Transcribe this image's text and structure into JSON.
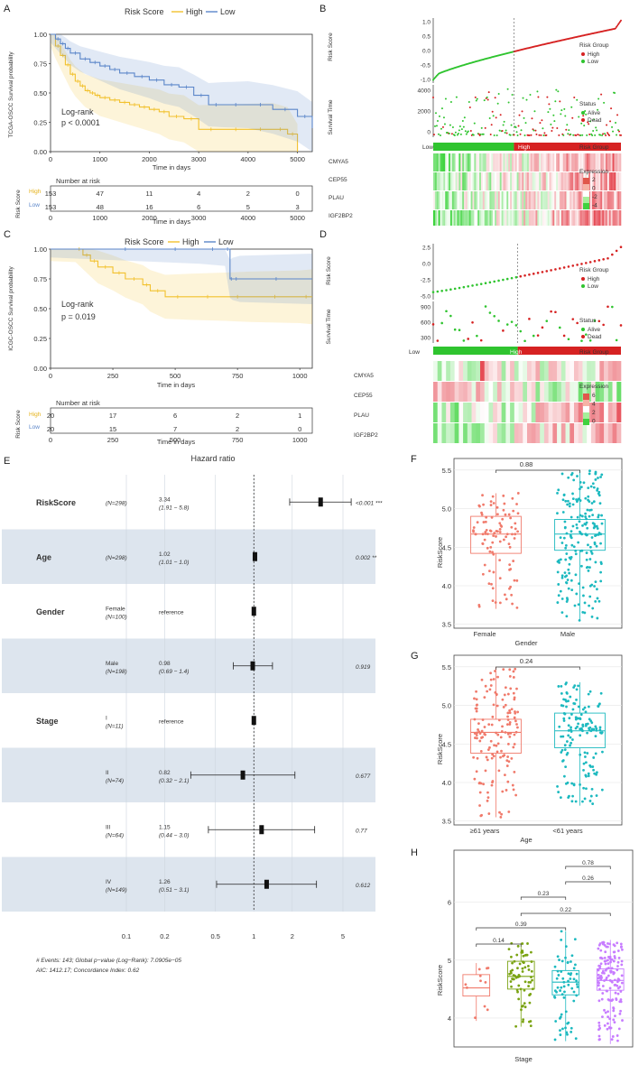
{
  "panel_labels": {
    "A": "A",
    "B": "B",
    "C": "C",
    "D": "D",
    "E": "E",
    "F": "F",
    "G": "G",
    "H": "H"
  },
  "colors": {
    "high": "#f2c12e",
    "low": "#5b86c9",
    "dead": "#d62222",
    "alive": "#2fc42f",
    "boxF": "#f07a6b",
    "boxM": "#1cb9bf",
    "stageI": "#f07a6b",
    "stageII": "#7aa312",
    "stageIII": "#1cb9bf",
    "stageIV": "#c77cff",
    "band": "#dde5ee"
  },
  "km_common": {
    "legend_title": "Risk Score",
    "legend_high": "High",
    "legend_low": "Low",
    "xlabel": "Time in days",
    "logrank": "Log-rank",
    "risk_title": "Number at risk",
    "risk_ylabel": "Risk Score",
    "row_high": "High",
    "row_low": "Low"
  },
  "chart_data": [
    {
      "id": "A",
      "type": "line",
      "ylabel": "TCGA-OSCC Survival probability",
      "xlabel": "Time in days",
      "pvalue": "p < 0.0001",
      "xticks": [
        "0",
        "1000",
        "2000",
        "3000",
        "4000",
        "5000"
      ],
      "yticks": [
        "0.00",
        "0.25",
        "0.50",
        "0.75",
        "1.00"
      ],
      "xlim": [
        0,
        5300
      ],
      "ylim": [
        0,
        1
      ],
      "series": [
        {
          "name": "High",
          "x": [
            0,
            100,
            200,
            300,
            400,
            500,
            600,
            700,
            800,
            900,
            1000,
            1200,
            1400,
            1600,
            1800,
            2000,
            2200,
            2400,
            2700,
            3000,
            3500,
            4000,
            4500,
            4800,
            5000
          ],
          "y": [
            1,
            0.9,
            0.82,
            0.74,
            0.66,
            0.6,
            0.56,
            0.52,
            0.5,
            0.48,
            0.46,
            0.44,
            0.42,
            0.4,
            0.38,
            0.36,
            0.34,
            0.3,
            0.28,
            0.19,
            0.19,
            0.19,
            0.19,
            0.15,
            0.0
          ]
        },
        {
          "name": "Low",
          "x": [
            0,
            100,
            200,
            300,
            400,
            600,
            800,
            1000,
            1200,
            1400,
            1700,
            2000,
            2300,
            2600,
            2900,
            3200,
            3500,
            4000,
            4500,
            5000,
            5300
          ],
          "y": [
            1,
            0.96,
            0.92,
            0.88,
            0.84,
            0.79,
            0.76,
            0.73,
            0.7,
            0.67,
            0.64,
            0.61,
            0.57,
            0.55,
            0.48,
            0.4,
            0.4,
            0.4,
            0.36,
            0.3,
            0.2
          ]
        }
      ],
      "risk_ticks": [
        "0",
        "1000",
        "2000",
        "3000",
        "4000",
        "5000"
      ],
      "risk_high": [
        "153",
        "47",
        "11",
        "4",
        "2",
        "0"
      ],
      "risk_low": [
        "153",
        "48",
        "16",
        "6",
        "5",
        "3"
      ]
    },
    {
      "id": "C",
      "type": "line",
      "ylabel": "ICGC-OSCC Survival probability",
      "xlabel": "Time in days",
      "pvalue": "p = 0.019",
      "xticks": [
        "0",
        "250",
        "500",
        "750",
        "1000"
      ],
      "yticks": [
        "0.00",
        "0.25",
        "0.50",
        "0.75",
        "1.00"
      ],
      "xlim": [
        0,
        1050
      ],
      "ylim": [
        0,
        1
      ],
      "series": [
        {
          "name": "High",
          "x": [
            0,
            100,
            130,
            160,
            190,
            250,
            300,
            370,
            400,
            460,
            560,
            700,
            800,
            1000,
            1050
          ],
          "y": [
            1,
            1,
            0.95,
            0.9,
            0.85,
            0.8,
            0.75,
            0.7,
            0.65,
            0.6,
            0.6,
            0.6,
            0.6,
            0.6,
            0.6
          ]
        },
        {
          "name": "Low",
          "x": [
            0,
            200,
            400,
            600,
            700,
            720,
            730,
            760,
            1050
          ],
          "y": [
            1,
            1,
            1,
            1,
            1,
            0.75,
            0.75,
            0.75,
            0.75
          ]
        }
      ],
      "risk_ticks": [
        "0",
        "250",
        "500",
        "750",
        "1000"
      ],
      "risk_high": [
        "20",
        "17",
        "6",
        "2",
        "1"
      ],
      "risk_low": [
        "20",
        "15",
        "7",
        "2",
        "0"
      ]
    }
  ],
  "panelB": {
    "risk_ylabel": "Risk Score",
    "risk_yticks": [
      "1.0",
      "0.5",
      "0.0",
      "-0.5",
      "-1.0"
    ],
    "time_ylabel": "Survival Time",
    "time_yticks": [
      "4000",
      "2000",
      "0"
    ],
    "risk_group_title": "Risk Group",
    "rg_high": "High",
    "rg_low": "Low",
    "status_title": "Status",
    "st_alive": "Alive",
    "st_dead": "Dead",
    "bar_low": "Low",
    "bar_high": "High",
    "bar_label": "Risk Group",
    "genes": [
      "CMYA5",
      "CEP55",
      "PLAU",
      "IGF2BP2"
    ],
    "expr_title": "Expression",
    "expr_ticks": [
      "2",
      "0",
      "-2",
      "-4"
    ]
  },
  "panelD": {
    "risk_ylabel": "Risk Score",
    "risk_yticks": [
      "2.5",
      "0.0",
      "-2.5",
      "-5.0"
    ],
    "time_ylabel": "Survival Time",
    "time_yticks": [
      "900",
      "600",
      "300"
    ],
    "risk_group_title": "Risk Group",
    "rg_high": "High",
    "rg_low": "Low",
    "status_title": "Status",
    "st_alive": "Alive",
    "st_dead": "Dead",
    "bar_low": "Low",
    "bar_high": "High",
    "bar_label": "Risk Group",
    "genes": [
      "CMYA5",
      "CEP55",
      "PLAU",
      "IGF2BP2"
    ],
    "expr_title": "Expression",
    "expr_ticks": [
      "6",
      "4",
      "2",
      "0"
    ]
  },
  "forest": {
    "title": "Hazard ratio",
    "rows": [
      {
        "name": "RiskScore",
        "level": "",
        "n": "(N=298)",
        "hr": "3.34",
        "ci": "(1.91 − 5.8)",
        "p": "<0.001 ***",
        "est": 3.34,
        "lo": 1.91,
        "hi": 5.8,
        "shaded": false
      },
      {
        "name": "Age",
        "level": "",
        "n": "(N=298)",
        "hr": "1.02",
        "ci": "(1.01 − 1.0)",
        "p": "0.002 **",
        "est": 1.02,
        "lo": 1.01,
        "hi": 1.03,
        "shaded": true
      },
      {
        "name": "Gender",
        "level": "Female",
        "n": "(N=100)",
        "hr": "reference",
        "ci": "",
        "p": "",
        "est": 1,
        "lo": 1,
        "hi": 1,
        "shaded": false
      },
      {
        "name": "",
        "level": "Male",
        "n": "(N=198)",
        "hr": "0.98",
        "ci": "(0.69 − 1.4)",
        "p": "0.919",
        "est": 0.98,
        "lo": 0.69,
        "hi": 1.4,
        "shaded": true
      },
      {
        "name": "Stage",
        "level": "I",
        "n": "(N=11)",
        "hr": "reference",
        "ci": "",
        "p": "",
        "est": 1,
        "lo": 1,
        "hi": 1,
        "shaded": false
      },
      {
        "name": "",
        "level": "II",
        "n": "(N=74)",
        "hr": "0.82",
        "ci": "(0.32 − 2.1)",
        "p": "0.677",
        "est": 0.82,
        "lo": 0.32,
        "hi": 2.1,
        "shaded": true
      },
      {
        "name": "",
        "level": "III",
        "n": "(N=64)",
        "hr": "1.15",
        "ci": "(0.44 − 3.0)",
        "p": "0.77",
        "est": 1.15,
        "lo": 0.44,
        "hi": 3.0,
        "shaded": false
      },
      {
        "name": "",
        "level": "IV",
        "n": "(N=149)",
        "hr": "1.26",
        "ci": "(0.51 − 3.1)",
        "p": "0.612",
        "est": 1.26,
        "lo": 0.51,
        "hi": 3.1,
        "shaded": true
      }
    ],
    "footer1": "# Events: 143; Global p−value (Log−Rank): 7.0905e−05",
    "footer2": "AIC: 1412.17; Concordance Index: 0.62",
    "xticks": [
      "0.1",
      "0.2",
      "0.5",
      "1",
      "2",
      "5"
    ],
    "xvals": [
      0.1,
      0.2,
      0.5,
      1,
      2,
      5
    ]
  },
  "panelF": {
    "ylabel": "RiskScore",
    "xlabel": "Gender",
    "cats": [
      "Female",
      "Male"
    ],
    "p": "0.88",
    "yticks": [
      "3.5",
      "4.0",
      "4.5",
      "5.0",
      "5.5"
    ],
    "boxes": [
      {
        "q1": 4.42,
        "med": 4.67,
        "q3": 4.9,
        "lo": 3.7,
        "hi": 5.2
      },
      {
        "q1": 4.46,
        "med": 4.67,
        "q3": 4.86,
        "lo": 3.55,
        "hi": 5.5
      }
    ]
  },
  "panelG": {
    "ylabel": "RiskScore",
    "xlabel": "Age",
    "cats": [
      "≥61 years",
      "<61 years"
    ],
    "p": "0.24",
    "yticks": [
      "3.5",
      "4.0",
      "4.5",
      "5.0",
      "5.5"
    ],
    "boxes": [
      {
        "q1": 4.38,
        "med": 4.65,
        "q3": 4.82,
        "lo": 3.55,
        "hi": 5.5
      },
      {
        "q1": 4.45,
        "med": 4.67,
        "q3": 4.9,
        "lo": 3.7,
        "hi": 5.3
      }
    ]
  },
  "panelH": {
    "ylabel": "RiskScore",
    "xlabel": "Stage",
    "cats": [
      "I",
      "II",
      "III",
      "IV"
    ],
    "yticks": [
      "4",
      "5",
      "6"
    ],
    "pvals": [
      "0.14",
      "0.22",
      "0.39",
      "0.23",
      "0.26",
      "0.78"
    ],
    "boxes": [
      {
        "q1": 4.38,
        "med": 4.52,
        "q3": 4.75,
        "lo": 3.95,
        "hi": 4.95
      },
      {
        "q1": 4.5,
        "med": 4.72,
        "q3": 4.98,
        "lo": 3.85,
        "hi": 5.3
      },
      {
        "q1": 4.4,
        "med": 4.62,
        "q3": 4.82,
        "lo": 3.6,
        "hi": 5.5
      },
      {
        "q1": 4.48,
        "med": 4.65,
        "q3": 4.85,
        "lo": 3.55,
        "hi": 5.35
      }
    ]
  }
}
